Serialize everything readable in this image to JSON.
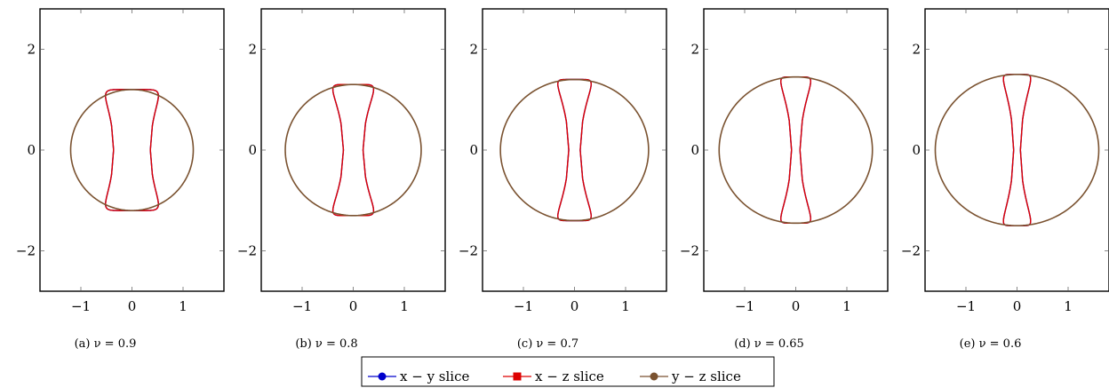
{
  "chart_data": {
    "type": "line",
    "xlim": [
      -1.8,
      1.8
    ],
    "ylim": [
      -2.8,
      2.8
    ],
    "xticks": [
      -1,
      0,
      1
    ],
    "yticks": [
      -2,
      0,
      2
    ],
    "xtick_labels": [
      "−1",
      "0",
      "1"
    ],
    "ytick_labels": [
      "−2",
      "0",
      "2"
    ],
    "legend": {
      "placement": "bottom-center",
      "entries": [
        {
          "label": "x − y slice",
          "color": "#0000cc",
          "marker": "circle"
        },
        {
          "label": "x − z slice",
          "color": "#dd0000",
          "marker": "square"
        },
        {
          "label": "y − z slice",
          "color": "#7a5230",
          "marker": "circle"
        }
      ]
    },
    "panels": [
      {
        "caption": "(a) ν = 0.9",
        "nu": 0.9,
        "series": [
          {
            "name": "x − y slice",
            "shape": "capsule",
            "half_width": 0.6,
            "half_height": 1.2,
            "waist": 0.6
          },
          {
            "name": "x − z slice",
            "shape": "capsule",
            "half_width": 0.6,
            "half_height": 1.2,
            "waist": 0.6
          },
          {
            "name": "y − z slice",
            "shape": "circle",
            "radius_x": 1.2,
            "radius_y": 1.2
          }
        ]
      },
      {
        "caption": "(b) ν = 0.8",
        "nu": 0.8,
        "series": [
          {
            "name": "x − y slice",
            "shape": "capsule",
            "half_width": 0.48,
            "half_height": 1.3,
            "waist": 0.4
          },
          {
            "name": "x − z slice",
            "shape": "capsule",
            "half_width": 0.48,
            "half_height": 1.3,
            "waist": 0.4
          },
          {
            "name": "y − z slice",
            "shape": "circle",
            "radius_x": 1.33,
            "radius_y": 1.3
          }
        ]
      },
      {
        "caption": "(c) ν = 0.7",
        "nu": 0.7,
        "series": [
          {
            "name": "x − y slice",
            "shape": "capsule",
            "half_width": 0.4,
            "half_height": 1.4,
            "waist": 0.28
          },
          {
            "name": "x − z slice",
            "shape": "capsule",
            "half_width": 0.4,
            "half_height": 1.4,
            "waist": 0.28
          },
          {
            "name": "y − z slice",
            "shape": "circle",
            "radius_x": 1.45,
            "radius_y": 1.4
          }
        ]
      },
      {
        "caption": "(d) ν = 0.65",
        "nu": 0.65,
        "series": [
          {
            "name": "x − y slice",
            "shape": "capsule",
            "half_width": 0.36,
            "half_height": 1.45,
            "waist": 0.23
          },
          {
            "name": "x − z slice",
            "shape": "capsule",
            "half_width": 0.36,
            "half_height": 1.45,
            "waist": 0.23
          },
          {
            "name": "y − z slice",
            "shape": "circle",
            "radius_x": 1.5,
            "radius_y": 1.45
          }
        ]
      },
      {
        "caption": "(e) ν = 0.6",
        "nu": 0.6,
        "series": [
          {
            "name": "x − y slice",
            "shape": "capsule",
            "half_width": 0.33,
            "half_height": 1.5,
            "waist": 0.2
          },
          {
            "name": "x − z slice",
            "shape": "capsule",
            "half_width": 0.33,
            "half_height": 1.5,
            "waist": 0.2
          },
          {
            "name": "y − z slice",
            "shape": "circle",
            "radius_x": 1.6,
            "radius_y": 1.5
          }
        ]
      }
    ]
  }
}
